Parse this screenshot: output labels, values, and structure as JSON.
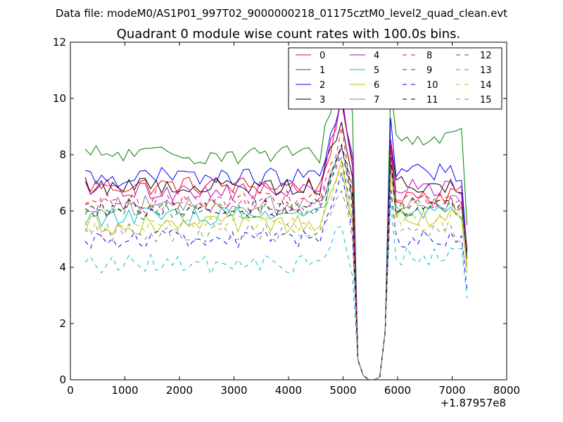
{
  "figure_title": "Data file: modeM0/AS1P01_997T02_9000000218_01175cztM0_level2_quad_clean.evt",
  "chart_data": {
    "type": "line",
    "title": "Quadrant 0 module wise count rates with 100.0s bins.",
    "xlabel": "",
    "ylabel": "",
    "x_offset_label": "+1.87957e8",
    "xlim": [
      0,
      8000
    ],
    "ylim": [
      0,
      12
    ],
    "xticks": [
      0,
      1000,
      2000,
      3000,
      4000,
      5000,
      6000,
      7000,
      8000
    ],
    "yticks": [
      0,
      2,
      4,
      6,
      8,
      10,
      12
    ],
    "xtick_labels": [
      "0",
      "1000",
      "2000",
      "3000",
      "4000",
      "5000",
      "6000",
      "7000",
      "8000"
    ],
    "ytick_labels": [
      "0",
      "2",
      "4",
      "6",
      "8",
      "10",
      "12"
    ],
    "legend_position": "top-right",
    "legend_columns": 4,
    "x": [
      272,
      372,
      472,
      572,
      672,
      772,
      872,
      972,
      1072,
      1172,
      1272,
      1372,
      1472,
      1572,
      1672,
      1772,
      1872,
      1972,
      2072,
      2172,
      2272,
      2372,
      2472,
      2572,
      2672,
      2772,
      2872,
      2972,
      3072,
      3172,
      3272,
      3372,
      3472,
      3572,
      3672,
      3772,
      3872,
      3972,
      4072,
      4172,
      4272,
      4372,
      4472,
      4572,
      4672,
      4772,
      4872,
      4972,
      5072,
      5172,
      5272,
      5372,
      5472,
      5572,
      5672,
      5772,
      5872,
      5972,
      6072,
      6172,
      6272,
      6372,
      6472,
      6572,
      6672,
      6772,
      6872,
      6972,
      7072,
      7172,
      7272
    ],
    "series": [
      {
        "name": "0",
        "color": "#ff0000",
        "dash": "solid",
        "base": 6.9,
        "peak": 9.6,
        "post": 6.6,
        "end": 4.3
      },
      {
        "name": "1",
        "color": "#008000",
        "dash": "solid",
        "base": 8.0,
        "peak": 11.5,
        "post": 8.6,
        "end": 5.5
      },
      {
        "name": "2",
        "color": "#0000ff",
        "dash": "solid",
        "base": 7.2,
        "peak": 9.8,
        "post": 7.4,
        "end": 4.6
      },
      {
        "name": "3",
        "color": "#000000",
        "dash": "solid",
        "base": 6.9,
        "peak": 9.2,
        "post": 6.9,
        "end": 4.5
      },
      {
        "name": "4",
        "color": "#bf00bf",
        "dash": "solid",
        "base": 6.7,
        "peak": 10.0,
        "post": 6.8,
        "end": 4.7
      },
      {
        "name": "5",
        "color": "#00bfbf",
        "dash": "solid",
        "base": 5.8,
        "peak": 8.3,
        "post": 5.9,
        "end": 4.1
      },
      {
        "name": "6",
        "color": "#bfbf00",
        "dash": "solid",
        "base": 5.5,
        "peak": 7.6,
        "post": 5.8,
        "end": 4.0
      },
      {
        "name": "7",
        "color": "#808080",
        "dash": "solid",
        "base": 6.2,
        "peak": 8.4,
        "post": 6.3,
        "end": 4.4
      },
      {
        "name": "8",
        "color": "#ff0000",
        "dash": "dashed",
        "base": 6.4,
        "peak": 8.8,
        "post": 6.3,
        "end": 4.5
      },
      {
        "name": "9",
        "color": "#008000",
        "dash": "dashed",
        "base": 6.0,
        "peak": 8.0,
        "post": 6.1,
        "end": 4.3
      },
      {
        "name": "10",
        "color": "#0000ff",
        "dash": "dashed",
        "base": 5.0,
        "peak": 7.2,
        "post": 5.0,
        "end": 3.2
      },
      {
        "name": "11",
        "color": "#000000",
        "dash": "dashed",
        "base": 6.1,
        "peak": 8.5,
        "post": 6.1,
        "end": 4.4
      },
      {
        "name": "12",
        "color": "#bf00bf",
        "dash": "dashed",
        "base": 6.2,
        "peak": 8.2,
        "post": 6.2,
        "end": 4.6
      },
      {
        "name": "13",
        "color": "#00bfbf",
        "dash": "dashed",
        "base": 4.1,
        "peak": 5.6,
        "post": 4.4,
        "end": 2.9
      },
      {
        "name": "14",
        "color": "#bfbf00",
        "dash": "dashed",
        "base": 5.5,
        "peak": 7.5,
        "post": 5.6,
        "end": 3.9
      },
      {
        "name": "15",
        "color": "#808080",
        "dash": "dashed",
        "base": 5.2,
        "peak": 6.9,
        "post": 5.2,
        "end": 3.8
      }
    ]
  }
}
